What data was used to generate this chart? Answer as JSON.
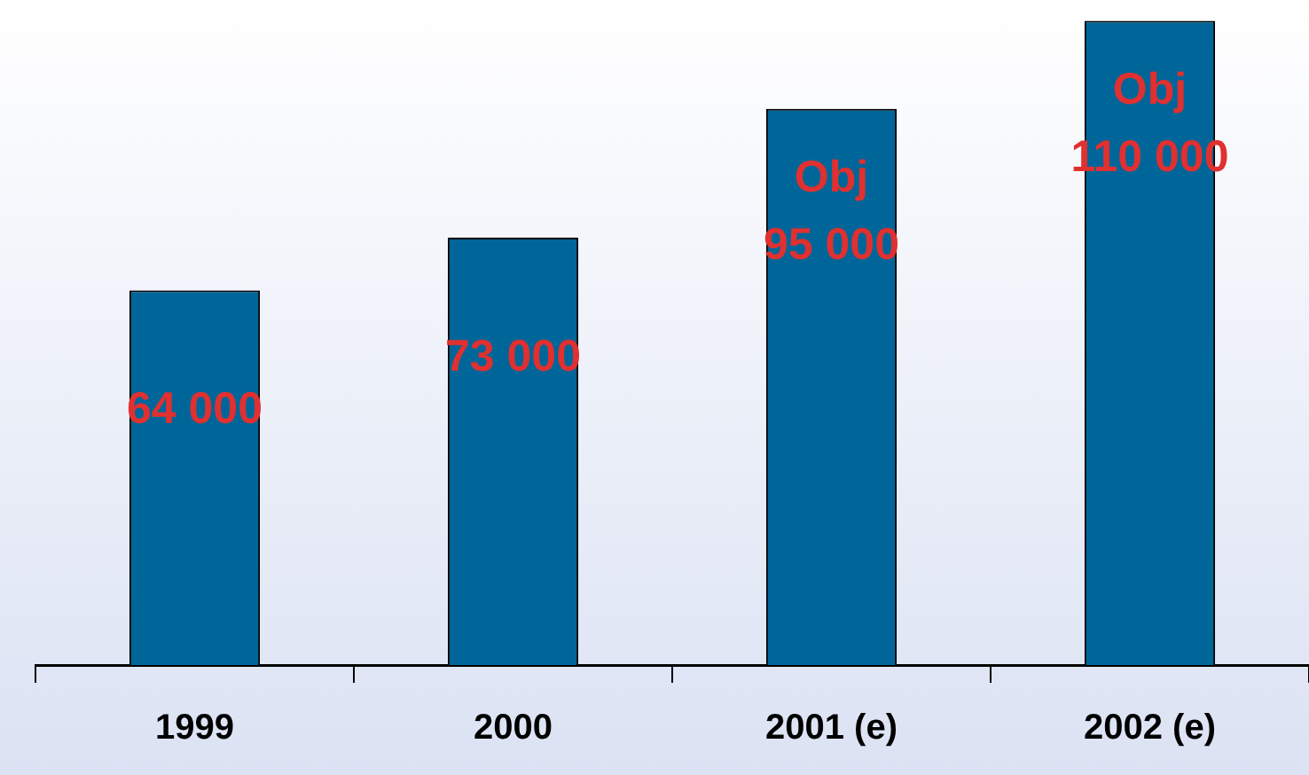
{
  "chart_data": {
    "type": "bar",
    "categories": [
      "1999",
      "2000",
      "2001 (e)",
      "2002 (e)"
    ],
    "values": [
      64000,
      73000,
      95000,
      110000
    ],
    "value_labels": [
      "64 000",
      "73 000",
      "Obj\n95 000",
      "Obj\n110 000"
    ],
    "color": "#006699",
    "grid": false,
    "legend": false
  }
}
